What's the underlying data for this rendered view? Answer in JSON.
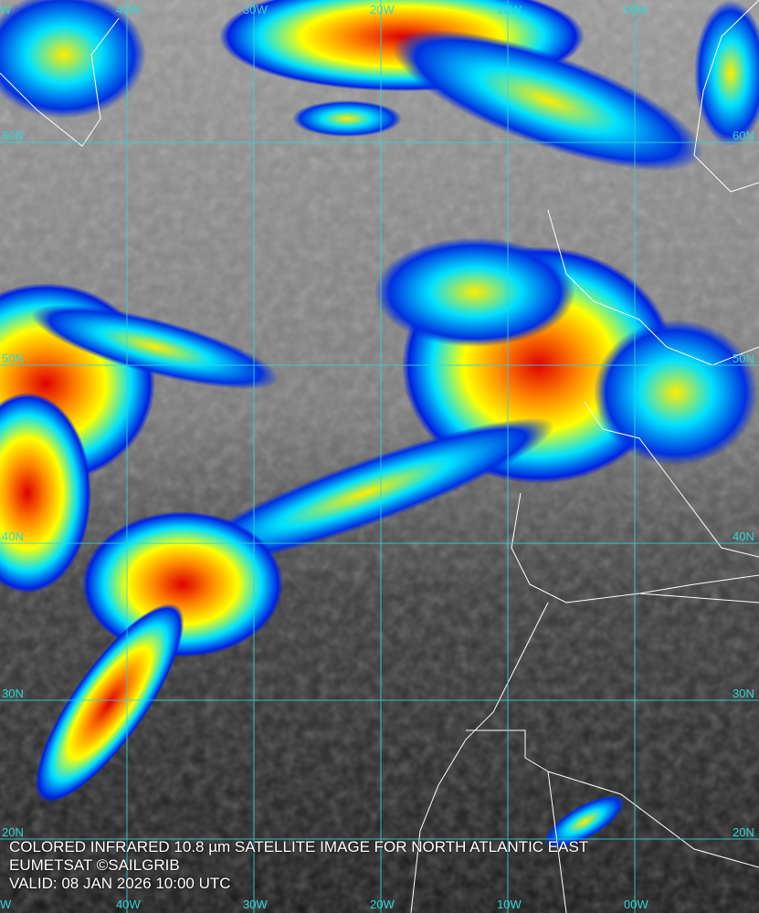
{
  "caption": {
    "title": "COLORED INFRARED 10.8 µm SATELLITE IMAGE FOR NORTH ATLANTIC EAST",
    "credit": "EUMETSAT ©SAILGRIB",
    "valid": "VALID:  08 JAN 2026 10:00 UTC"
  },
  "graticule": {
    "longitudes": [
      "40W",
      "30W",
      "20W",
      "10W",
      "00W"
    ],
    "latitudes": [
      "60N",
      "50N",
      "40N",
      "30N",
      "20N"
    ],
    "edge_label": "W",
    "color": "#2fd6d6"
  },
  "colors": {
    "cold_top": "#e00000",
    "orange": "#ff8c00",
    "yellow": "#ffff00",
    "cyan": "#00e0ff",
    "blue": "#0020e0",
    "coastline": "#ffffff"
  }
}
